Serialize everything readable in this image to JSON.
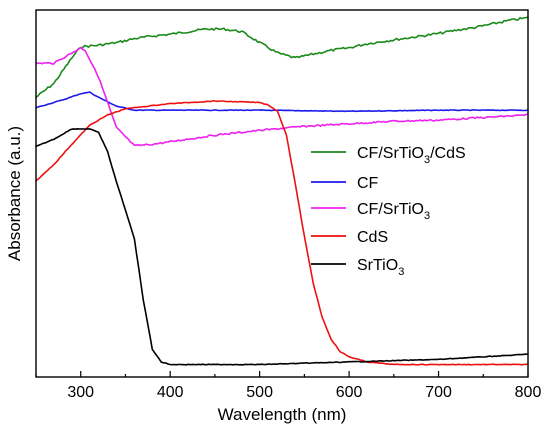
{
  "chart_data": {
    "type": "line",
    "title": "",
    "xlabel": "Wavelength (nm)",
    "ylabel": "Absorbance (a.u.)",
    "xlim": [
      250,
      800
    ],
    "ylim": [
      0,
      1
    ],
    "x_ticks": [
      "300",
      "400",
      "500",
      "600",
      "700",
      "800"
    ],
    "y_ticks": [],
    "grid": false,
    "legend_position": "right-middle",
    "series": [
      {
        "name": "CF/SrTiO3/CdS",
        "name_main": "CF/SrTiO",
        "name_sub": "3",
        "name_tail": "/CdS",
        "color": "#1a8a1a",
        "x": [
          250,
          270,
          290,
          300,
          320,
          340,
          360,
          380,
          400,
          420,
          440,
          460,
          480,
          500,
          520,
          540,
          560,
          580,
          600,
          620,
          640,
          660,
          680,
          700,
          720,
          740,
          760,
          780,
          800
        ],
        "y": [
          0.762,
          0.8,
          0.869,
          0.9,
          0.904,
          0.911,
          0.922,
          0.929,
          0.934,
          0.941,
          0.948,
          0.948,
          0.941,
          0.911,
          0.883,
          0.869,
          0.88,
          0.89,
          0.897,
          0.908,
          0.915,
          0.922,
          0.929,
          0.936,
          0.945,
          0.952,
          0.962,
          0.972,
          0.979
        ]
      },
      {
        "name": "CF",
        "name_main": "CF",
        "name_sub": "",
        "name_tail": "",
        "color": "#1a1aee",
        "x": [
          250,
          280,
          300,
          310,
          320,
          340,
          360,
          400,
          500,
          600,
          700,
          800
        ],
        "y": [
          0.734,
          0.755,
          0.772,
          0.776,
          0.762,
          0.738,
          0.727,
          0.727,
          0.727,
          0.724,
          0.727,
          0.727
        ]
      },
      {
        "name": "CF/SrTiO3",
        "name_main": "CF/SrTiO",
        "name_sub": "3",
        "name_tail": "",
        "color": "#ee22ee",
        "x": [
          250,
          270,
          290,
          300,
          305,
          320,
          340,
          360,
          380,
          400,
          450,
          500,
          550,
          600,
          650,
          700,
          750,
          800
        ],
        "y": [
          0.855,
          0.855,
          0.883,
          0.897,
          0.89,
          0.817,
          0.679,
          0.63,
          0.634,
          0.641,
          0.659,
          0.672,
          0.683,
          0.69,
          0.697,
          0.7,
          0.707,
          0.714
        ]
      },
      {
        "name": "CdS",
        "name_main": "CdS",
        "name_sub": "",
        "name_tail": "",
        "color": "#ee1111",
        "x": [
          250,
          270,
          290,
          310,
          330,
          350,
          400,
          450,
          500,
          510,
          520,
          530,
          540,
          550,
          560,
          570,
          580,
          590,
          600,
          620,
          650,
          700,
          800
        ],
        "y": [
          0.534,
          0.579,
          0.634,
          0.686,
          0.714,
          0.731,
          0.745,
          0.752,
          0.748,
          0.741,
          0.724,
          0.659,
          0.524,
          0.383,
          0.255,
          0.162,
          0.103,
          0.069,
          0.055,
          0.041,
          0.034,
          0.034,
          0.034
        ]
      },
      {
        "name": "SrTiO3",
        "name_main": "SrTiO",
        "name_sub": "3",
        "name_tail": "",
        "color": "#000000",
        "x": [
          250,
          270,
          290,
          310,
          320,
          330,
          340,
          350,
          360,
          370,
          380,
          390,
          400,
          450,
          500,
          600,
          700,
          800
        ],
        "y": [
          0.628,
          0.648,
          0.676,
          0.676,
          0.666,
          0.614,
          0.531,
          0.455,
          0.376,
          0.21,
          0.076,
          0.041,
          0.034,
          0.034,
          0.034,
          0.041,
          0.048,
          0.062
        ]
      }
    ]
  }
}
